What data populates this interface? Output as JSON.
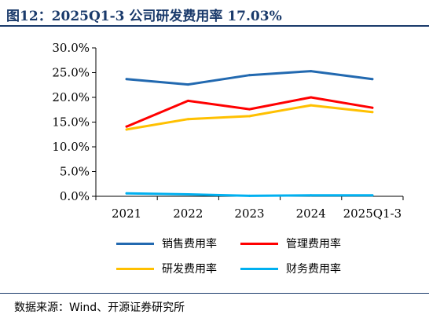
{
  "title": "图12：2025Q1-3 公司研发费用率 17.03%",
  "source": "数据来源：Wind、开源证券研究所",
  "chart_data": {
    "type": "line",
    "title": "图12：2025Q1-3 公司研发费用率 17.03%",
    "categories": [
      "2021",
      "2022",
      "2023",
      "2024",
      "2025Q1-3"
    ],
    "ylim": [
      0,
      30
    ],
    "yticks": [
      "0.0%",
      "5.0%",
      "10.0%",
      "15.0%",
      "20.0%",
      "25.0%",
      "30.0%"
    ],
    "grid": false,
    "legend_position": "bottom",
    "series": [
      {
        "name": "销售费用率",
        "color": "#2269b0",
        "values": [
          23.7,
          22.6,
          24.5,
          25.3,
          23.7
        ]
      },
      {
        "name": "管理费用率",
        "color": "#ff0000",
        "values": [
          14.1,
          19.3,
          17.6,
          20.0,
          17.9
        ]
      },
      {
        "name": "研发费用率",
        "color": "#ffc000",
        "values": [
          13.5,
          15.6,
          16.2,
          18.4,
          17.03
        ]
      },
      {
        "name": "财务费用率",
        "color": "#00b0f0",
        "values": [
          0.6,
          0.4,
          0.1,
          0.2,
          0.2
        ]
      }
    ]
  }
}
